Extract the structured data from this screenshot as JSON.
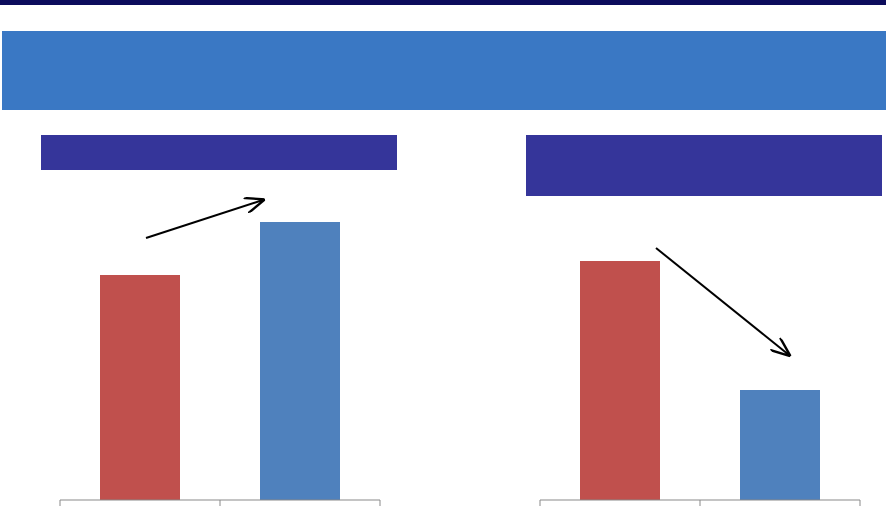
{
  "chart_data": [
    {
      "type": "bar",
      "categories": [
        null,
        null
      ],
      "values": [
        225,
        278
      ],
      "colors": [
        "#c0504d",
        "#4f81bd"
      ],
      "ylim": [
        0,
        300
      ]
    },
    {
      "type": "bar",
      "categories": [
        null,
        null
      ],
      "values": [
        239,
        110
      ],
      "colors": [
        "#c0504d",
        "#4f81bd"
      ],
      "ylim": [
        0,
        300
      ]
    }
  ]
}
